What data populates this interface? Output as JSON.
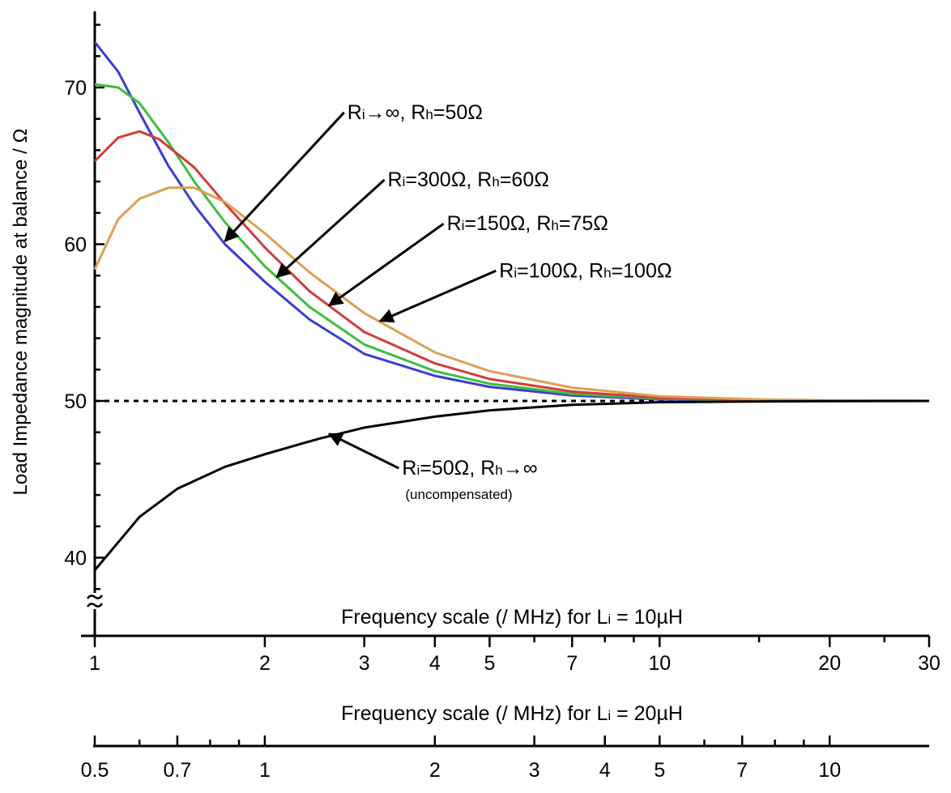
{
  "chart_data": {
    "type": "line",
    "title": "",
    "ylabel": "Load Impedance magnitude at balance / Ω",
    "ylim": [
      36,
      75
    ],
    "y_ticks": [
      40,
      50,
      60,
      70
    ],
    "y_axis_break": true,
    "x_scale": "log",
    "x_axes": [
      {
        "label": "Frequency scale (/ MHz) for L",
        "label_sub": "i",
        "label_suffix": " = 10µH",
        "xlim": [
          1,
          30
        ],
        "tick_labels": [
          "1",
          "2",
          "3",
          "4",
          "5",
          "7",
          "10",
          "20",
          "30"
        ],
        "tick_values": [
          1,
          2,
          3,
          4,
          5,
          7,
          10,
          20,
          30
        ]
      },
      {
        "label": "Frequency scale (/ MHz) for L",
        "label_sub": "i",
        "label_suffix": " = 20µH",
        "xlim": [
          0.5,
          15
        ],
        "tick_labels": [
          "0.5",
          "0.7",
          "1",
          "2",
          "3",
          "4",
          "5",
          "7",
          "10"
        ],
        "tick_values": [
          0.5,
          0.7,
          1,
          2,
          3,
          4,
          5,
          7,
          10
        ]
      }
    ],
    "reference_line": {
      "y": 50,
      "style": "dotted"
    },
    "series": [
      {
        "color": "#3c3cd2",
        "x": [
          1,
          1.1,
          1.2,
          1.35,
          1.5,
          1.7,
          2,
          2.4,
          3,
          4,
          5,
          7,
          10,
          15,
          20,
          30
        ],
        "y": [
          72.9,
          71,
          68.4,
          65,
          62.5,
          60,
          57.6,
          55.2,
          53,
          51.6,
          50.9,
          50.35,
          50.1,
          50.03,
          50.01,
          50
        ]
      },
      {
        "color": "#3cbf3c",
        "x": [
          1,
          1.1,
          1.2,
          1.35,
          1.5,
          1.7,
          2,
          2.4,
          3,
          4,
          5,
          7,
          10,
          15,
          20,
          30
        ],
        "y": [
          70.2,
          70,
          69,
          66.5,
          64,
          61.4,
          58.6,
          56,
          53.6,
          51.9,
          51.1,
          50.45,
          50.15,
          50.05,
          50.02,
          50
        ]
      },
      {
        "color": "#d23c3c",
        "x": [
          1,
          1.1,
          1.2,
          1.3,
          1.5,
          1.7,
          2,
          2.4,
          3,
          4,
          5,
          7,
          10,
          15,
          20,
          30
        ],
        "y": [
          65.3,
          66.8,
          67.2,
          66.7,
          64.9,
          62.6,
          59.8,
          57,
          54.4,
          52.4,
          51.4,
          50.6,
          50.2,
          50.06,
          50.02,
          50
        ]
      },
      {
        "color": "#dca050",
        "x": [
          1,
          1.1,
          1.2,
          1.35,
          1.5,
          1.7,
          2,
          2.4,
          3,
          4,
          5,
          7,
          10,
          15,
          20,
          30
        ],
        "y": [
          58.4,
          61.6,
          62.9,
          63.6,
          63.6,
          62.7,
          60.7,
          58.2,
          55.6,
          53.1,
          51.9,
          50.85,
          50.3,
          50.1,
          50.04,
          50
        ]
      },
      {
        "color": "#000000",
        "x": [
          1,
          1.2,
          1.4,
          1.7,
          2,
          2.5,
          3,
          4,
          5,
          7,
          10,
          15,
          20,
          30
        ],
        "y": [
          39.2,
          42.6,
          44.4,
          45.8,
          46.6,
          47.6,
          48.3,
          49,
          49.4,
          49.75,
          49.92,
          49.97,
          49.99,
          50
        ]
      }
    ],
    "annotations": [
      {
        "parts": [
          {
            "t": "R"
          },
          {
            "t": "i",
            "sub": true
          },
          {
            "t": "→∞, R"
          },
          {
            "t": "h",
            "sub": true
          },
          {
            "t": "=50Ω"
          }
        ],
        "target": [
          1.7,
          60.2
        ],
        "label_at": [
          2.8,
          68.2
        ]
      },
      {
        "parts": [
          {
            "t": "R"
          },
          {
            "t": "i",
            "sub": true
          },
          {
            "t": "=300Ω, R"
          },
          {
            "t": "h",
            "sub": true
          },
          {
            "t": "=60Ω"
          }
        ],
        "target": [
          2.1,
          57.9
        ],
        "label_at": [
          3.3,
          63.9
        ]
      },
      {
        "parts": [
          {
            "t": "R"
          },
          {
            "t": "i",
            "sub": true
          },
          {
            "t": "=150Ω, R"
          },
          {
            "t": "h",
            "sub": true
          },
          {
            "t": "=75Ω"
          }
        ],
        "target": [
          2.6,
          56.1
        ],
        "label_at": [
          4.2,
          61.1
        ]
      },
      {
        "parts": [
          {
            "t": "R"
          },
          {
            "t": "i",
            "sub": true
          },
          {
            "t": "=100Ω, R"
          },
          {
            "t": "h",
            "sub": true
          },
          {
            "t": "=100Ω"
          }
        ],
        "target": [
          3.2,
          55.1
        ],
        "label_at": [
          5.2,
          58.1
        ]
      },
      {
        "parts": [
          {
            "t": "R"
          },
          {
            "t": "i",
            "sub": true
          },
          {
            "t": "=50Ω, R"
          },
          {
            "t": "h",
            "sub": true
          },
          {
            "t": "→∞"
          }
        ],
        "target": [
          2.6,
          47.9
        ],
        "label_at": [
          3.5,
          45.5
        ],
        "note": "(uncompensated)"
      }
    ]
  }
}
